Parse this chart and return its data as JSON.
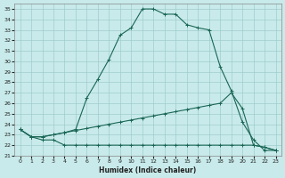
{
  "xlabel": "Humidex (Indice chaleur)",
  "bg_color": "#c8eaea",
  "grid_color": "#a0cccc",
  "line_color": "#1a6655",
  "xlim": [
    -0.5,
    23.5
  ],
  "ylim": [
    21,
    35.5
  ],
  "xticks": [
    0,
    1,
    2,
    3,
    4,
    5,
    6,
    7,
    8,
    9,
    10,
    11,
    12,
    13,
    14,
    15,
    16,
    17,
    18,
    19,
    20,
    21,
    22,
    23
  ],
  "yticks": [
    21,
    22,
    23,
    24,
    25,
    26,
    27,
    28,
    29,
    30,
    31,
    32,
    33,
    34,
    35
  ],
  "curve1_x": [
    0,
    1,
    2,
    3,
    4,
    5,
    6,
    7,
    8,
    9,
    10,
    11,
    12,
    13,
    14,
    15,
    16,
    17,
    18,
    19,
    20,
    21,
    22,
    23
  ],
  "curve1_y": [
    23.5,
    22.8,
    22.8,
    23.0,
    23.2,
    23.5,
    26.5,
    28.3,
    30.2,
    32.5,
    33.2,
    35.0,
    35.0,
    34.5,
    34.5,
    33.5,
    33.2,
    33.0,
    29.5,
    27.2,
    24.2,
    22.5,
    21.5,
    21.5
  ],
  "curve2_x": [
    0,
    1,
    2,
    3,
    4,
    5,
    6,
    7,
    8,
    9,
    10,
    11,
    12,
    13,
    14,
    15,
    16,
    17,
    18,
    19,
    20,
    21,
    22,
    23
  ],
  "curve2_y": [
    23.5,
    22.8,
    22.8,
    23.0,
    23.2,
    23.4,
    23.6,
    23.8,
    24.0,
    24.2,
    24.4,
    24.6,
    24.8,
    25.0,
    25.2,
    25.4,
    25.6,
    25.8,
    26.0,
    27.0,
    25.5,
    22.0,
    21.8,
    21.5
  ],
  "curve3_x": [
    0,
    1,
    2,
    3,
    4,
    5,
    6,
    7,
    8,
    9,
    10,
    11,
    12,
    13,
    14,
    15,
    16,
    17,
    18,
    19,
    20,
    21,
    22,
    23
  ],
  "curve3_y": [
    23.5,
    22.8,
    22.5,
    22.5,
    22.0,
    22.0,
    22.0,
    22.0,
    22.0,
    22.0,
    22.0,
    22.0,
    22.0,
    22.0,
    22.0,
    22.0,
    22.0,
    22.0,
    22.0,
    22.0,
    22.0,
    22.0,
    21.8,
    21.5
  ]
}
